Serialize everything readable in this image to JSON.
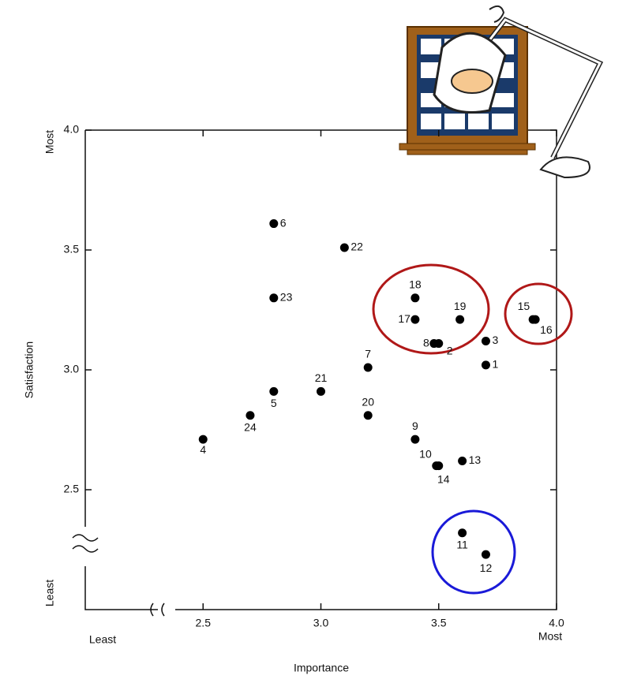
{
  "chart_data": {
    "type": "scatter",
    "x_label": "Importance",
    "y_label": "Satisfaction",
    "x_low": "Least",
    "x_high": "Most",
    "y_low": "Least",
    "y_high": "Most",
    "xlim": [
      2.0,
      4.0
    ],
    "ylim": [
      2.0,
      4.0
    ],
    "xticks": [
      2.5,
      {
        "value": 3,
        "label": "3.0"
      },
      3.5,
      {
        "value": 4,
        "label": "4.0"
      }
    ],
    "yticks": [
      2.5,
      {
        "value": 3,
        "label": "3.0"
      },
      3.5,
      {
        "value": 4,
        "label": "4.0"
      }
    ],
    "color": "#000000",
    "labels": [
      "1",
      "2",
      "3",
      "4",
      "5",
      "6",
      "7",
      "8",
      "9",
      "10",
      "11",
      "12",
      "13",
      "14",
      "15",
      "16",
      "17",
      "18",
      "19",
      "20",
      "21",
      "22",
      "23",
      "24"
    ],
    "x": [
      3.7,
      3.5,
      3.7,
      2.5,
      2.8,
      2.8,
      3.2,
      3.48,
      3.4,
      3.49,
      3.6,
      3.7,
      3.6,
      3.5,
      3.9,
      3.91,
      3.4,
      3.4,
      3.59,
      3.2,
      3.0,
      3.1,
      2.8,
      2.7
    ],
    "y": [
      3.02,
      3.11,
      3.12,
      2.71,
      2.91,
      3.61,
      3.01,
      3.11,
      2.71,
      2.6,
      2.32,
      2.23,
      2.62,
      2.6,
      3.21,
      3.21,
      3.21,
      3.3,
      3.21,
      2.81,
      2.91,
      3.51,
      3.3,
      2.81
    ]
  }
}
